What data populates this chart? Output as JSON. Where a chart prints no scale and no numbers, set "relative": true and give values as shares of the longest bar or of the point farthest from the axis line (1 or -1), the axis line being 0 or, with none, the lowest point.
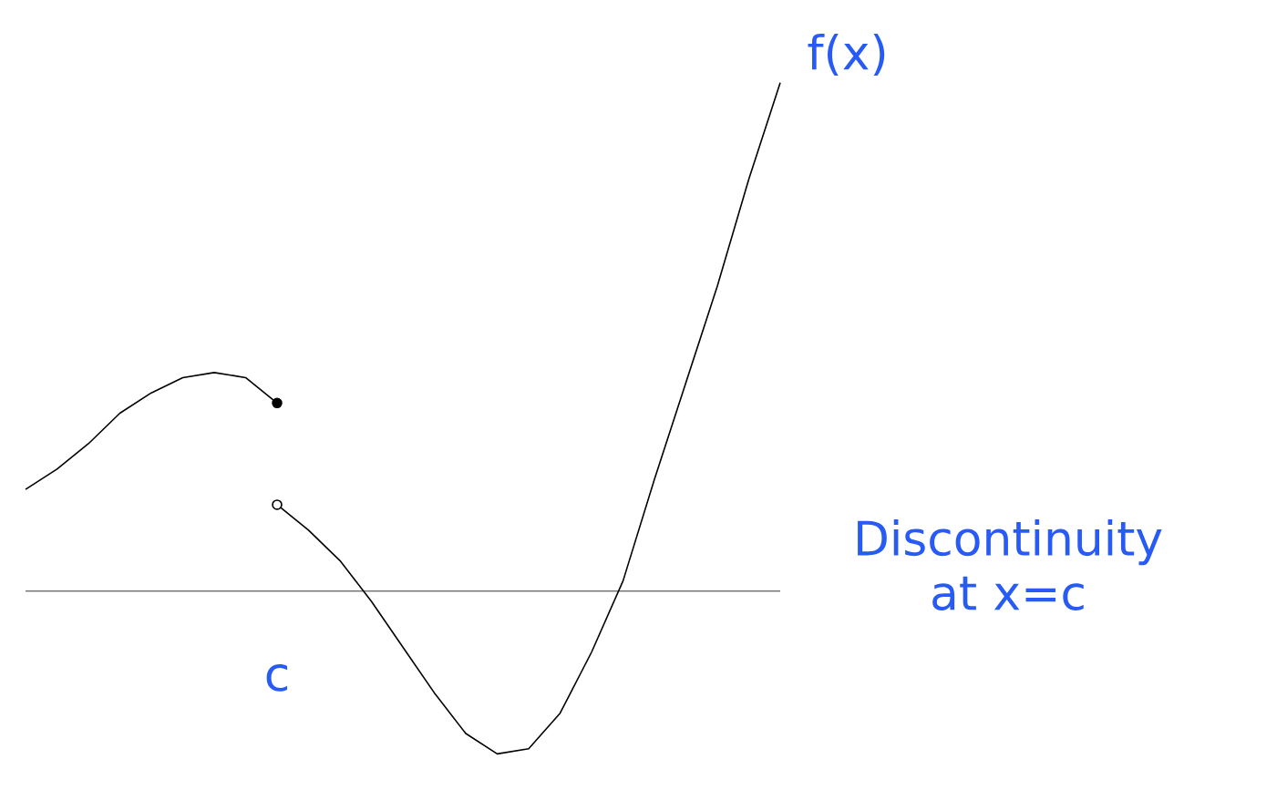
{
  "chart_data": {
    "type": "line",
    "relative": true,
    "categories": [
      null,
      null,
      null,
      null,
      null,
      null,
      null,
      null,
      null,
      null,
      null,
      null,
      null,
      null,
      null,
      null,
      null,
      null,
      null,
      null,
      null,
      null,
      null,
      null,
      null
    ],
    "series": [
      {
        "color": "#000000",
        "values": [
          0.2,
          0.24,
          0.29,
          0.35,
          0.39,
          0.42,
          0.43,
          0.42,
          0.37,
          null,
          null,
          null,
          null,
          null,
          null,
          null,
          null,
          null,
          null,
          null,
          null,
          null,
          null,
          null,
          null
        ]
      },
      {
        "color": "#000000",
        "values": [
          null,
          null,
          null,
          null,
          null,
          null,
          null,
          null,
          0.17,
          0.12,
          0.06,
          -0.02,
          -0.11,
          -0.2,
          -0.28,
          -0.32,
          -0.31,
          -0.24,
          -0.12,
          0.02,
          0.22,
          0.41,
          0.6,
          0.81,
          1
        ]
      }
    ],
    "annotations": [
      "f(x)",
      "c",
      "Discontinuity at x=c"
    ]
  }
}
